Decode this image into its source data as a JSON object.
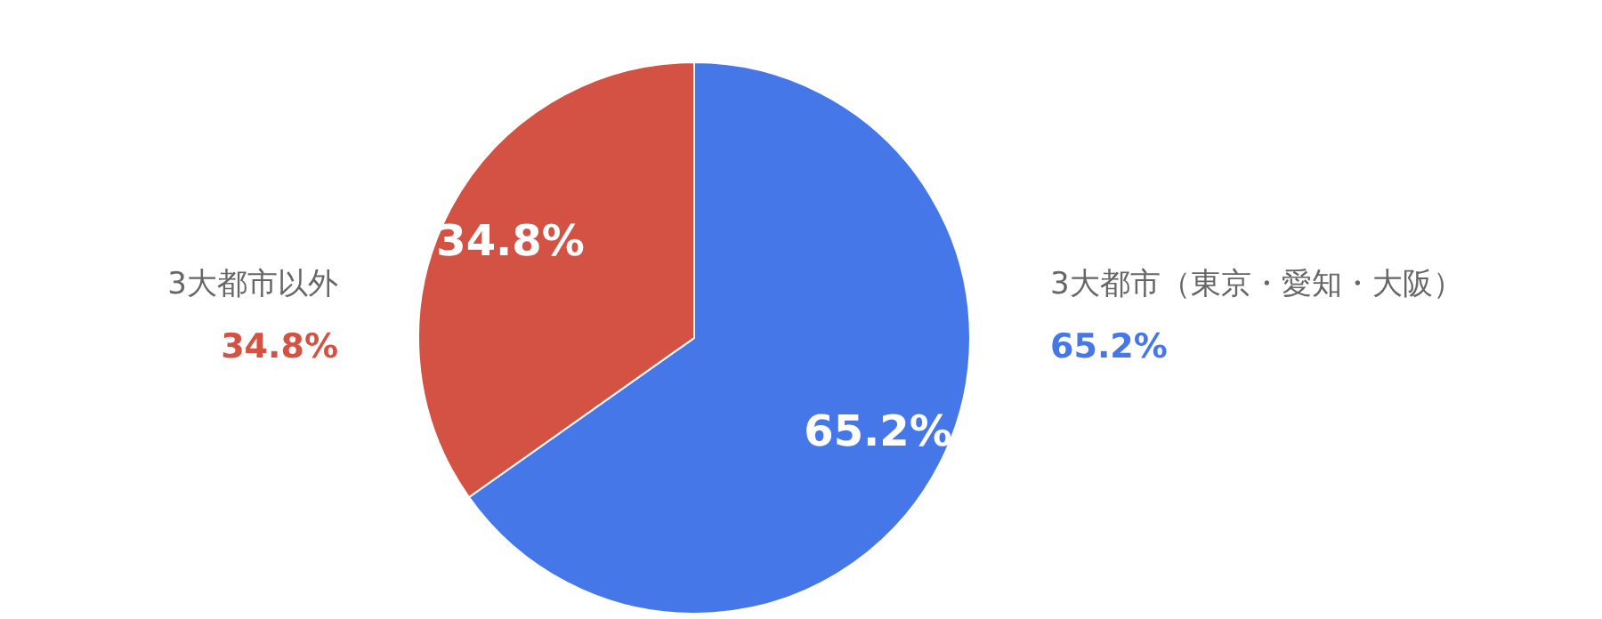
{
  "chart_data": {
    "type": "pie",
    "categories": [
      "3大都市（東京・愛知・大阪）",
      "3大都市以外"
    ],
    "values": [
      65.2,
      34.8
    ],
    "value_labels": [
      "65.2%",
      "34.8%"
    ],
    "colors": [
      "#4677e8",
      "#d45244"
    ]
  }
}
